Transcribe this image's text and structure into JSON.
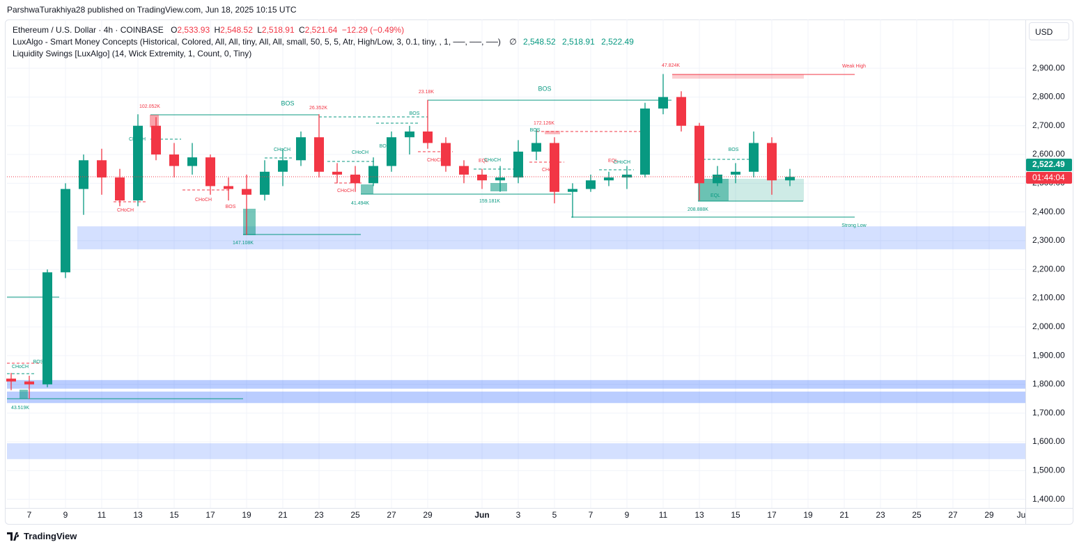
{
  "header": {
    "published": "ParshwaTurakhiya28 published on TradingView.com, Jun 18, 2025 10:15 UTC",
    "brand": "TradingView",
    "currency": "USD"
  },
  "legend": {
    "symbol": "Ethereum / U.S. Dollar · 4h · COINBASE",
    "o_label": "O",
    "o": "2,533.93",
    "h_label": "H",
    "h": "2,548.52",
    "l_label": "L",
    "l": "2,518.91",
    "c_label": "C",
    "c": "2,521.64",
    "change": "−12.29 (−0.49%)",
    "indicator1": "LuxAlgo - Smart Money Concepts (Historical, Colored, All, All, tiny, All, All, small, 50, 5, 5, Atr, High/Low, 3, 0.1, tiny, , 1, ──, ──, ──)",
    "indicator1_sym": "∅",
    "indicator1_values": [
      "2,548.52",
      "2,518.91",
      "2,522.49"
    ],
    "indicator2": "Liquidity Swings [LuxAlgo] (14, Wick Extremity, 1, Count, 0, Tiny)"
  },
  "chart_data": {
    "type": "candlestick",
    "categories": [
      null,
      "7",
      null,
      "9",
      null,
      "11",
      null,
      "13",
      null,
      "15",
      null,
      "17",
      null,
      "19",
      null,
      "21",
      null,
      "23",
      null,
      "25",
      null,
      "27",
      null,
      "29",
      null,
      null,
      "Jun",
      null,
      "3",
      null,
      "5",
      null,
      "7",
      null,
      "9",
      null,
      "11",
      null,
      "13",
      null,
      "15",
      null,
      "17",
      null,
      "19",
      null,
      "21",
      null,
      "23",
      null,
      "25",
      null,
      "27",
      null,
      "29",
      null,
      "Ju"
    ],
    "open": [
      1820,
      1810,
      1800,
      2190,
      2480,
      2580,
      2520,
      2440,
      2700,
      2600,
      2560,
      2590,
      2490,
      2480,
      2460,
      2540,
      2580,
      2660,
      2540,
      2530,
      2500,
      2560,
      2660,
      2680,
      2640,
      2560,
      2530,
      2510,
      2520,
      2610,
      2640,
      2470,
      2480,
      2510,
      2520,
      2530,
      2760,
      2800,
      2700,
      2500,
      2530,
      2540,
      2640,
      2510,
      null,
      null,
      null,
      null,
      null,
      null,
      null,
      null,
      null,
      null,
      null,
      null,
      null
    ],
    "high": [
      1840,
      1830,
      2200,
      2500,
      2600,
      2620,
      2550,
      2740,
      2730,
      2640,
      2640,
      2600,
      2520,
      2530,
      2580,
      2620,
      2680,
      2740,
      2570,
      2560,
      2590,
      2680,
      2700,
      2790,
      2660,
      2580,
      2550,
      2560,
      2650,
      2690,
      2660,
      2500,
      2530,
      2540,
      2560,
      2780,
      2880,
      2820,
      2710,
      2560,
      2570,
      2680,
      2660,
      2550,
      null,
      null,
      null,
      null,
      null,
      null,
      null,
      null,
      null,
      null,
      null,
      null,
      null
    ],
    "low": [
      1780,
      1750,
      1790,
      2170,
      2390,
      2460,
      2420,
      2420,
      2580,
      2520,
      2530,
      2460,
      2440,
      2320,
      2440,
      2490,
      2560,
      2520,
      2500,
      2470,
      2490,
      2540,
      2600,
      2620,
      2540,
      2500,
      2480,
      2470,
      2500,
      2580,
      2430,
      2380,
      2470,
      2490,
      2480,
      2520,
      2740,
      2680,
      2440,
      2490,
      2500,
      2520,
      2460,
      2490,
      null,
      null,
      null,
      null,
      null,
      null,
      null,
      null,
      null,
      null,
      null,
      null,
      null
    ],
    "close": [
      1810,
      1800,
      2190,
      2480,
      2580,
      2520,
      2440,
      2700,
      2600,
      2560,
      2590,
      2490,
      2480,
      2460,
      2540,
      2580,
      2660,
      2540,
      2530,
      2500,
      2560,
      2660,
      2680,
      2640,
      2560,
      2530,
      2510,
      2520,
      2610,
      2640,
      2470,
      2480,
      2510,
      2520,
      2530,
      2760,
      2800,
      2700,
      2500,
      2530,
      2540,
      2640,
      2510,
      2522,
      null,
      null,
      null,
      null,
      null,
      null,
      null,
      null,
      null,
      null,
      null,
      null,
      null
    ],
    "up_color": "#089981",
    "down_color": "#f23645",
    "ylim": [
      1370,
      3065
    ],
    "yticks": [
      {
        "value": 1400,
        "label": "1,400.00"
      },
      {
        "value": 1500,
        "label": "1,500.00"
      },
      {
        "value": 1600,
        "label": "1,600.00"
      },
      {
        "value": 1700,
        "label": "1,700.00"
      },
      {
        "value": 1800,
        "label": "1,800.00"
      },
      {
        "value": 1900,
        "label": "1,900.00"
      },
      {
        "value": 2000,
        "label": "2,000.00"
      },
      {
        "value": 2100,
        "label": "2,100.00"
      },
      {
        "value": 2200,
        "label": "2,200.00"
      },
      {
        "value": 2300,
        "label": "2,300.00"
      },
      {
        "value": 2400,
        "label": "2,400.00"
      },
      {
        "value": 2500,
        "label": "2,500.00"
      },
      {
        "value": 2600,
        "label": "2,600.00"
      },
      {
        "value": 2700,
        "label": "2,700.00"
      },
      {
        "value": 2800,
        "label": "2,800.00"
      },
      {
        "value": 2900,
        "label": "2,900.00"
      }
    ],
    "grid": true,
    "last_price": {
      "value": 2522.49,
      "label": "2,522.49"
    },
    "countdown": "01:44:04",
    "zones": [
      [
        2270,
        2350
      ],
      [
        1785,
        1815
      ],
      [
        1735,
        1775
      ],
      [
        1540,
        1595
      ]
    ],
    "annotations": [
      "BOS",
      "102.052K",
      "CHoCH",
      "BOS",
      "CHoCH",
      "CHoCH",
      "BOS",
      "CHoCH",
      "147.108K",
      "26.352K",
      "BOS",
      "23.18K",
      "BOS",
      "CHoCH",
      "BOS",
      "CHoCH",
      "41.494K",
      "CHoCH",
      "EQL",
      "CHoCH",
      "159.181K",
      "172.126K",
      "BOS",
      "CHoCH",
      "EQL",
      "CHoCH",
      "47.824K",
      "Weak High",
      "BOS",
      "EQL",
      "208.888K",
      "Strong Low",
      "CHoCH",
      "BOS",
      "43.519K"
    ]
  }
}
